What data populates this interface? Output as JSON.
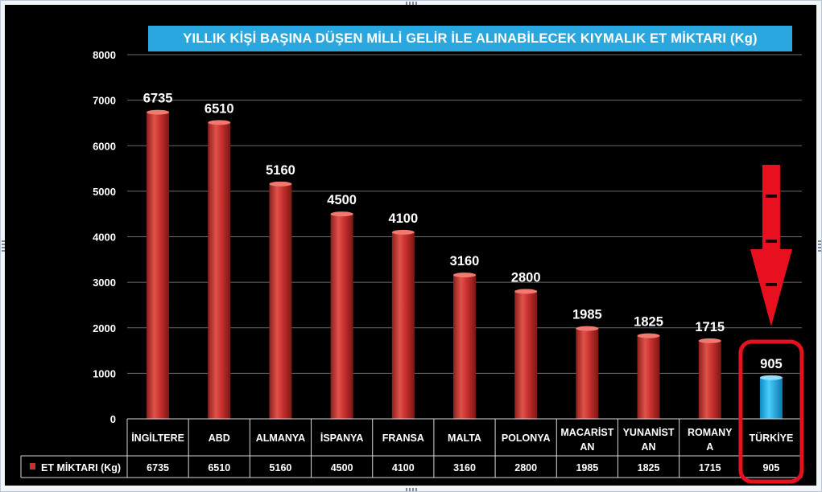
{
  "chart_data": {
    "type": "bar",
    "title": "YILLIK KİŞİ BAŞINA DÜŞEN MİLLİ GELİR İLE ALINABİLECEK KIYMALIK ET MİKTARI (Kg)",
    "categories": [
      "İNGİLTERE",
      "ABD",
      "ALMANYA",
      "İSPANYA",
      "FRANSA",
      "MALTA",
      "POLONYA",
      "MACARİSTAN",
      "YUNANİSTAN",
      "ROMANYA",
      "TÜRKİYE"
    ],
    "category_lines": [
      [
        "İNGİLTERE"
      ],
      [
        "ABD"
      ],
      [
        "ALMANYA"
      ],
      [
        "İSPANYA"
      ],
      [
        "FRANSA"
      ],
      [
        "MALTA"
      ],
      [
        "POLONYA"
      ],
      [
        "MACARİST",
        "AN"
      ],
      [
        "YUNANİST",
        "AN"
      ],
      [
        "ROMANY",
        "A"
      ],
      [
        "TÜRKİYE"
      ]
    ],
    "series": [
      {
        "name": "ET MİKTARI (Kg)",
        "values": [
          6735,
          6510,
          5160,
          4500,
          4100,
          3160,
          2800,
          1985,
          1825,
          1715,
          905
        ]
      }
    ],
    "value_labels": [
      "6735",
      "6510",
      "5160",
      "4500",
      "4100",
      "3160",
      "2800",
      "1985",
      "1825",
      "1715",
      "905"
    ],
    "ylim": [
      0,
      8000
    ],
    "yticks": [
      0,
      1000,
      2000,
      3000,
      4000,
      5000,
      6000,
      7000,
      8000
    ],
    "grid": true,
    "legend": "data-table",
    "highlight_category": "TÜRKİYE",
    "colors": {
      "bar": "#c8302e",
      "bar_highlight": "#1fb0e8",
      "title_bg": "#2aa7de",
      "annotation": "#e8101e",
      "background": "#000000"
    }
  }
}
